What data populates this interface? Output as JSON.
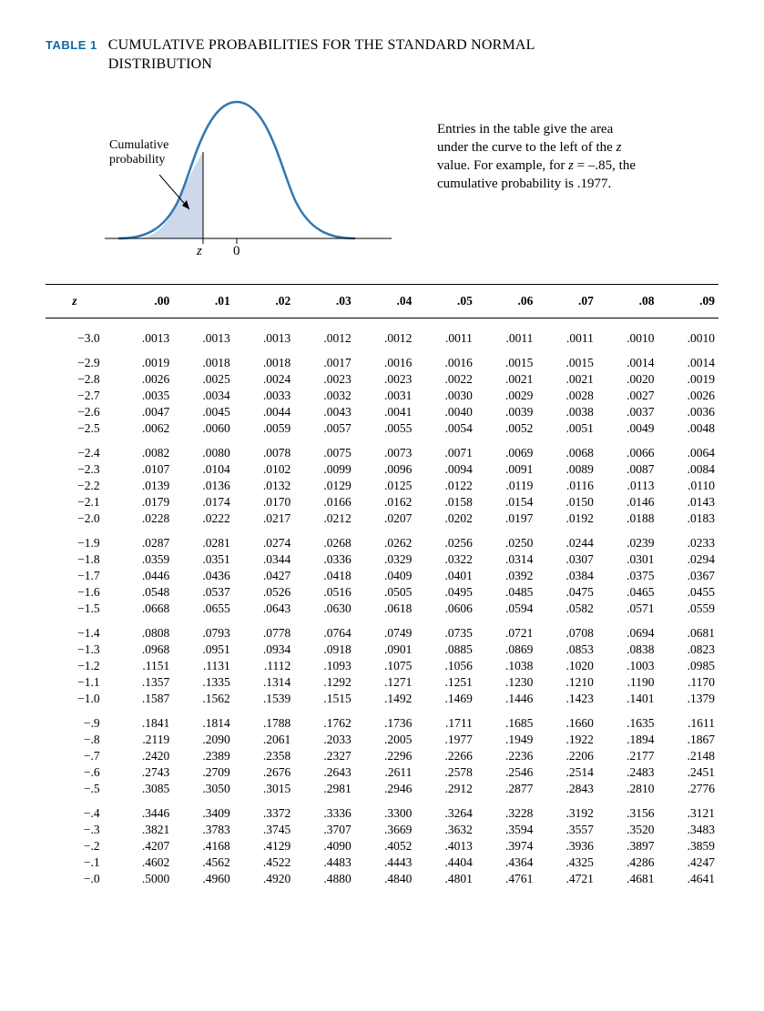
{
  "title": {
    "label": "TABLE 1",
    "text1": "CUMULATIVE PROBABILITIES FOR THE STANDARD NORMAL",
    "text2": "DISTRIBUTION"
  },
  "figure": {
    "cum_label_line1": "Cumulative",
    "cum_label_line2": "probability",
    "z_label": "z",
    "zero_label": "0",
    "caption_parts": {
      "p1": "Entries in the table give the area under the curve to the left of the ",
      "z1": "z",
      "p2": " value. For example, for ",
      "z2": "z",
      "p3": " = –.85, the cumulative probability is .1977."
    },
    "curve_stroke": "#2e77b5",
    "curve_stroke_width": 2.5,
    "fill_color": "#cdd9ea",
    "axis_color": "#000000",
    "arrow_color": "#000000"
  },
  "table": {
    "header": [
      "z",
      ".00",
      ".01",
      ".02",
      ".03",
      ".04",
      ".05",
      ".06",
      ".07",
      ".08",
      ".09"
    ],
    "groups": [
      [
        [
          "−3.0",
          ".0013",
          ".0013",
          ".0013",
          ".0012",
          ".0012",
          ".0011",
          ".0011",
          ".0011",
          ".0010",
          ".0010"
        ]
      ],
      [
        [
          "−2.9",
          ".0019",
          ".0018",
          ".0018",
          ".0017",
          ".0016",
          ".0016",
          ".0015",
          ".0015",
          ".0014",
          ".0014"
        ],
        [
          "−2.8",
          ".0026",
          ".0025",
          ".0024",
          ".0023",
          ".0023",
          ".0022",
          ".0021",
          ".0021",
          ".0020",
          ".0019"
        ],
        [
          "−2.7",
          ".0035",
          ".0034",
          ".0033",
          ".0032",
          ".0031",
          ".0030",
          ".0029",
          ".0028",
          ".0027",
          ".0026"
        ],
        [
          "−2.6",
          ".0047",
          ".0045",
          ".0044",
          ".0043",
          ".0041",
          ".0040",
          ".0039",
          ".0038",
          ".0037",
          ".0036"
        ],
        [
          "−2.5",
          ".0062",
          ".0060",
          ".0059",
          ".0057",
          ".0055",
          ".0054",
          ".0052",
          ".0051",
          ".0049",
          ".0048"
        ]
      ],
      [
        [
          "−2.4",
          ".0082",
          ".0080",
          ".0078",
          ".0075",
          ".0073",
          ".0071",
          ".0069",
          ".0068",
          ".0066",
          ".0064"
        ],
        [
          "−2.3",
          ".0107",
          ".0104",
          ".0102",
          ".0099",
          ".0096",
          ".0094",
          ".0091",
          ".0089",
          ".0087",
          ".0084"
        ],
        [
          "−2.2",
          ".0139",
          ".0136",
          ".0132",
          ".0129",
          ".0125",
          ".0122",
          ".0119",
          ".0116",
          ".0113",
          ".0110"
        ],
        [
          "−2.1",
          ".0179",
          ".0174",
          ".0170",
          ".0166",
          ".0162",
          ".0158",
          ".0154",
          ".0150",
          ".0146",
          ".0143"
        ],
        [
          "−2.0",
          ".0228",
          ".0222",
          ".0217",
          ".0212",
          ".0207",
          ".0202",
          ".0197",
          ".0192",
          ".0188",
          ".0183"
        ]
      ],
      [
        [
          "−1.9",
          ".0287",
          ".0281",
          ".0274",
          ".0268",
          ".0262",
          ".0256",
          ".0250",
          ".0244",
          ".0239",
          ".0233"
        ],
        [
          "−1.8",
          ".0359",
          ".0351",
          ".0344",
          ".0336",
          ".0329",
          ".0322",
          ".0314",
          ".0307",
          ".0301",
          ".0294"
        ],
        [
          "−1.7",
          ".0446",
          ".0436",
          ".0427",
          ".0418",
          ".0409",
          ".0401",
          ".0392",
          ".0384",
          ".0375",
          ".0367"
        ],
        [
          "−1.6",
          ".0548",
          ".0537",
          ".0526",
          ".0516",
          ".0505",
          ".0495",
          ".0485",
          ".0475",
          ".0465",
          ".0455"
        ],
        [
          "−1.5",
          ".0668",
          ".0655",
          ".0643",
          ".0630",
          ".0618",
          ".0606",
          ".0594",
          ".0582",
          ".0571",
          ".0559"
        ]
      ],
      [
        [
          "−1.4",
          ".0808",
          ".0793",
          ".0778",
          ".0764",
          ".0749",
          ".0735",
          ".0721",
          ".0708",
          ".0694",
          ".0681"
        ],
        [
          "−1.3",
          ".0968",
          ".0951",
          ".0934",
          ".0918",
          ".0901",
          ".0885",
          ".0869",
          ".0853",
          ".0838",
          ".0823"
        ],
        [
          "−1.2",
          ".1151",
          ".1131",
          ".1112",
          ".1093",
          ".1075",
          ".1056",
          ".1038",
          ".1020",
          ".1003",
          ".0985"
        ],
        [
          "−1.1",
          ".1357",
          ".1335",
          ".1314",
          ".1292",
          ".1271",
          ".1251",
          ".1230",
          ".1210",
          ".1190",
          ".1170"
        ],
        [
          "−1.0",
          ".1587",
          ".1562",
          ".1539",
          ".1515",
          ".1492",
          ".1469",
          ".1446",
          ".1423",
          ".1401",
          ".1379"
        ]
      ],
      [
        [
          "−.9",
          ".1841",
          ".1814",
          ".1788",
          ".1762",
          ".1736",
          ".1711",
          ".1685",
          ".1660",
          ".1635",
          ".1611"
        ],
        [
          "−.8",
          ".2119",
          ".2090",
          ".2061",
          ".2033",
          ".2005",
          ".1977",
          ".1949",
          ".1922",
          ".1894",
          ".1867"
        ],
        [
          "−.7",
          ".2420",
          ".2389",
          ".2358",
          ".2327",
          ".2296",
          ".2266",
          ".2236",
          ".2206",
          ".2177",
          ".2148"
        ],
        [
          "−.6",
          ".2743",
          ".2709",
          ".2676",
          ".2643",
          ".2611",
          ".2578",
          ".2546",
          ".2514",
          ".2483",
          ".2451"
        ],
        [
          "−.5",
          ".3085",
          ".3050",
          ".3015",
          ".2981",
          ".2946",
          ".2912",
          ".2877",
          ".2843",
          ".2810",
          ".2776"
        ]
      ],
      [
        [
          "−.4",
          ".3446",
          ".3409",
          ".3372",
          ".3336",
          ".3300",
          ".3264",
          ".3228",
          ".3192",
          ".3156",
          ".3121"
        ],
        [
          "−.3",
          ".3821",
          ".3783",
          ".3745",
          ".3707",
          ".3669",
          ".3632",
          ".3594",
          ".3557",
          ".3520",
          ".3483"
        ],
        [
          "−.2",
          ".4207",
          ".4168",
          ".4129",
          ".4090",
          ".4052",
          ".4013",
          ".3974",
          ".3936",
          ".3897",
          ".3859"
        ],
        [
          "−.1",
          ".4602",
          ".4562",
          ".4522",
          ".4483",
          ".4443",
          ".4404",
          ".4364",
          ".4325",
          ".4286",
          ".4247"
        ],
        [
          "−.0",
          ".5000",
          ".4960",
          ".4920",
          ".4880",
          ".4840",
          ".4801",
          ".4761",
          ".4721",
          ".4681",
          ".4641"
        ]
      ]
    ]
  }
}
